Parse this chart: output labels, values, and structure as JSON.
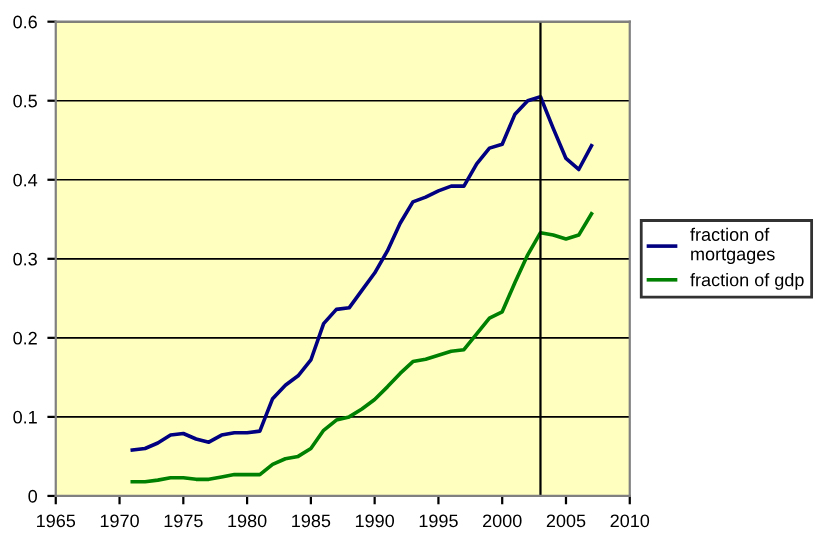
{
  "chart_data": {
    "type": "line",
    "x": [
      1971,
      1972,
      1973,
      1974,
      1975,
      1976,
      1977,
      1978,
      1979,
      1980,
      1981,
      1982,
      1983,
      1984,
      1985,
      1986,
      1987,
      1988,
      1989,
      1990,
      1991,
      1992,
      1993,
      1994,
      1995,
      1996,
      1997,
      1998,
      1999,
      2000,
      2001,
      2002,
      2003,
      2004,
      2005,
      2006,
      2007
    ],
    "series": [
      {
        "name": "fraction of\nmortgages",
        "color": "#000080",
        "values": [
          0.058,
          0.06,
          0.067,
          0.077,
          0.079,
          0.072,
          0.068,
          0.077,
          0.08,
          0.08,
          0.082,
          0.123,
          0.14,
          0.152,
          0.172,
          0.218,
          0.236,
          0.238,
          0.26,
          0.282,
          0.31,
          0.345,
          0.372,
          0.378,
          0.386,
          0.392,
          0.392,
          0.42,
          0.44,
          0.445,
          0.483,
          0.5,
          0.505,
          0.465,
          0.427,
          0.413,
          0.443
        ]
      },
      {
        "name": "fraction of gdp",
        "color": "#008000",
        "values": [
          0.018,
          0.018,
          0.02,
          0.023,
          0.023,
          0.021,
          0.021,
          0.024,
          0.027,
          0.027,
          0.027,
          0.04,
          0.047,
          0.05,
          0.06,
          0.083,
          0.096,
          0.1,
          0.11,
          0.122,
          0.138,
          0.155,
          0.17,
          0.173,
          0.178,
          0.183,
          0.185,
          0.205,
          0.225,
          0.233,
          0.27,
          0.305,
          0.333,
          0.33,
          0.325,
          0.33,
          0.357
        ]
      }
    ],
    "xlim": [
      1965,
      2010
    ],
    "xticks": [
      1965,
      1970,
      1975,
      1980,
      1985,
      1990,
      1995,
      2000,
      2005,
      2010
    ],
    "ylim": [
      0,
      0.6
    ],
    "yticks": [
      0,
      0.1,
      0.2,
      0.3,
      0.4,
      0.5,
      0.6
    ],
    "ref_lines": [
      {
        "axis": "x",
        "value": 2003,
        "color": "#000000"
      }
    ],
    "grid": "y",
    "legend": "right",
    "marker": "none",
    "line_style": "solid"
  }
}
